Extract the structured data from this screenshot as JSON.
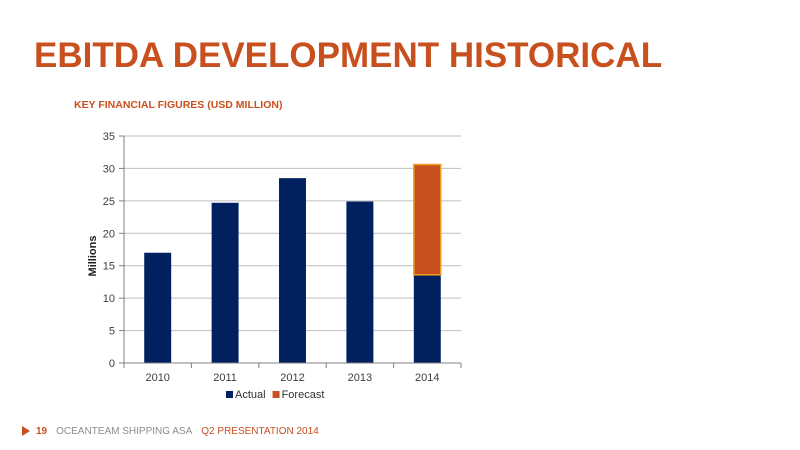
{
  "slide": {
    "title": "EBITDA DEVELOPMENT HISTORICAL"
  },
  "footer": {
    "page_number": "19",
    "company": "OCEANTEAM SHIPPING ASA",
    "presentation": "Q2 PRESENTATION 2014"
  },
  "colors": {
    "accent": "#c8501f",
    "actual": "#002060",
    "forecast": "#c8501f",
    "forecast_border": "#f0a020"
  },
  "chart_data": {
    "type": "bar",
    "stacked": true,
    "title": "KEY FINANCIAL FIGURES (USD MILLION)",
    "xlabel": "",
    "ylabel": "Millions",
    "categories": [
      "2010",
      "2011",
      "2012",
      "2013",
      "2014"
    ],
    "series": [
      {
        "name": "Actual",
        "values": [
          17.0,
          24.7,
          28.5,
          24.9,
          13.6
        ],
        "color": "#002060"
      },
      {
        "name": "Forecast",
        "values": [
          0,
          0,
          0,
          0,
          17.0
        ],
        "color": "#c8501f"
      }
    ],
    "ylim": [
      0,
      35
    ],
    "yticks": [
      0,
      5,
      10,
      15,
      20,
      25,
      30,
      35
    ],
    "grid": true,
    "legend": "bottom"
  }
}
